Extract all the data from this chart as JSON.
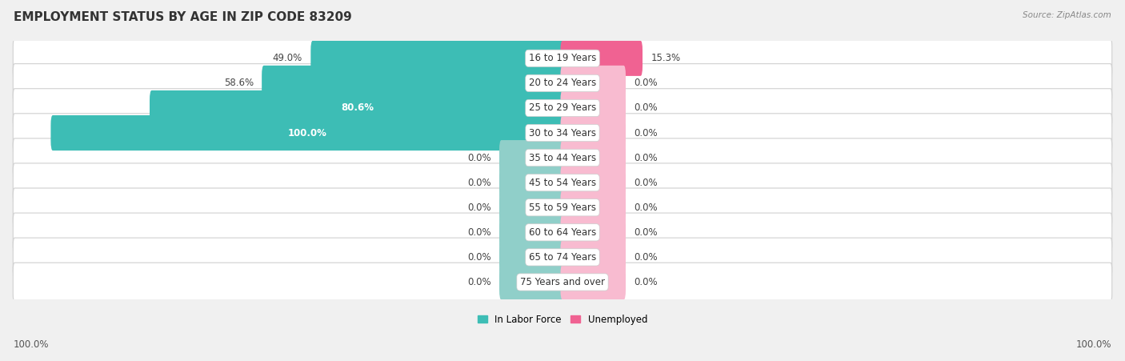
{
  "title": "EMPLOYMENT STATUS BY AGE IN ZIP CODE 83209",
  "source": "Source: ZipAtlas.com",
  "age_groups": [
    "16 to 19 Years",
    "20 to 24 Years",
    "25 to 29 Years",
    "30 to 34 Years",
    "35 to 44 Years",
    "45 to 54 Years",
    "55 to 59 Years",
    "60 to 64 Years",
    "65 to 74 Years",
    "75 Years and over"
  ],
  "in_labor_force": [
    49.0,
    58.6,
    80.6,
    100.0,
    0.0,
    0.0,
    0.0,
    0.0,
    0.0,
    0.0
  ],
  "unemployed": [
    15.3,
    0.0,
    0.0,
    0.0,
    0.0,
    0.0,
    0.0,
    0.0,
    0.0,
    0.0
  ],
  "labor_force_color": "#3DBDB5",
  "unemployed_color": "#F06292",
  "labor_force_zero_color": "#90CFC9",
  "unemployed_zero_color": "#F8BBD0",
  "background_color": "#f0f0f0",
  "row_bg_color": "#e8e8e8",
  "title_fontsize": 11,
  "label_fontsize": 8.5,
  "bar_height": 0.62,
  "stub_size": 12.0,
  "x_max": 100.0,
  "legend_labor_label": "In Labor Force",
  "legend_unemployed_label": "Unemployed",
  "left_axis_label": "100.0%",
  "right_axis_label": "100.0%"
}
